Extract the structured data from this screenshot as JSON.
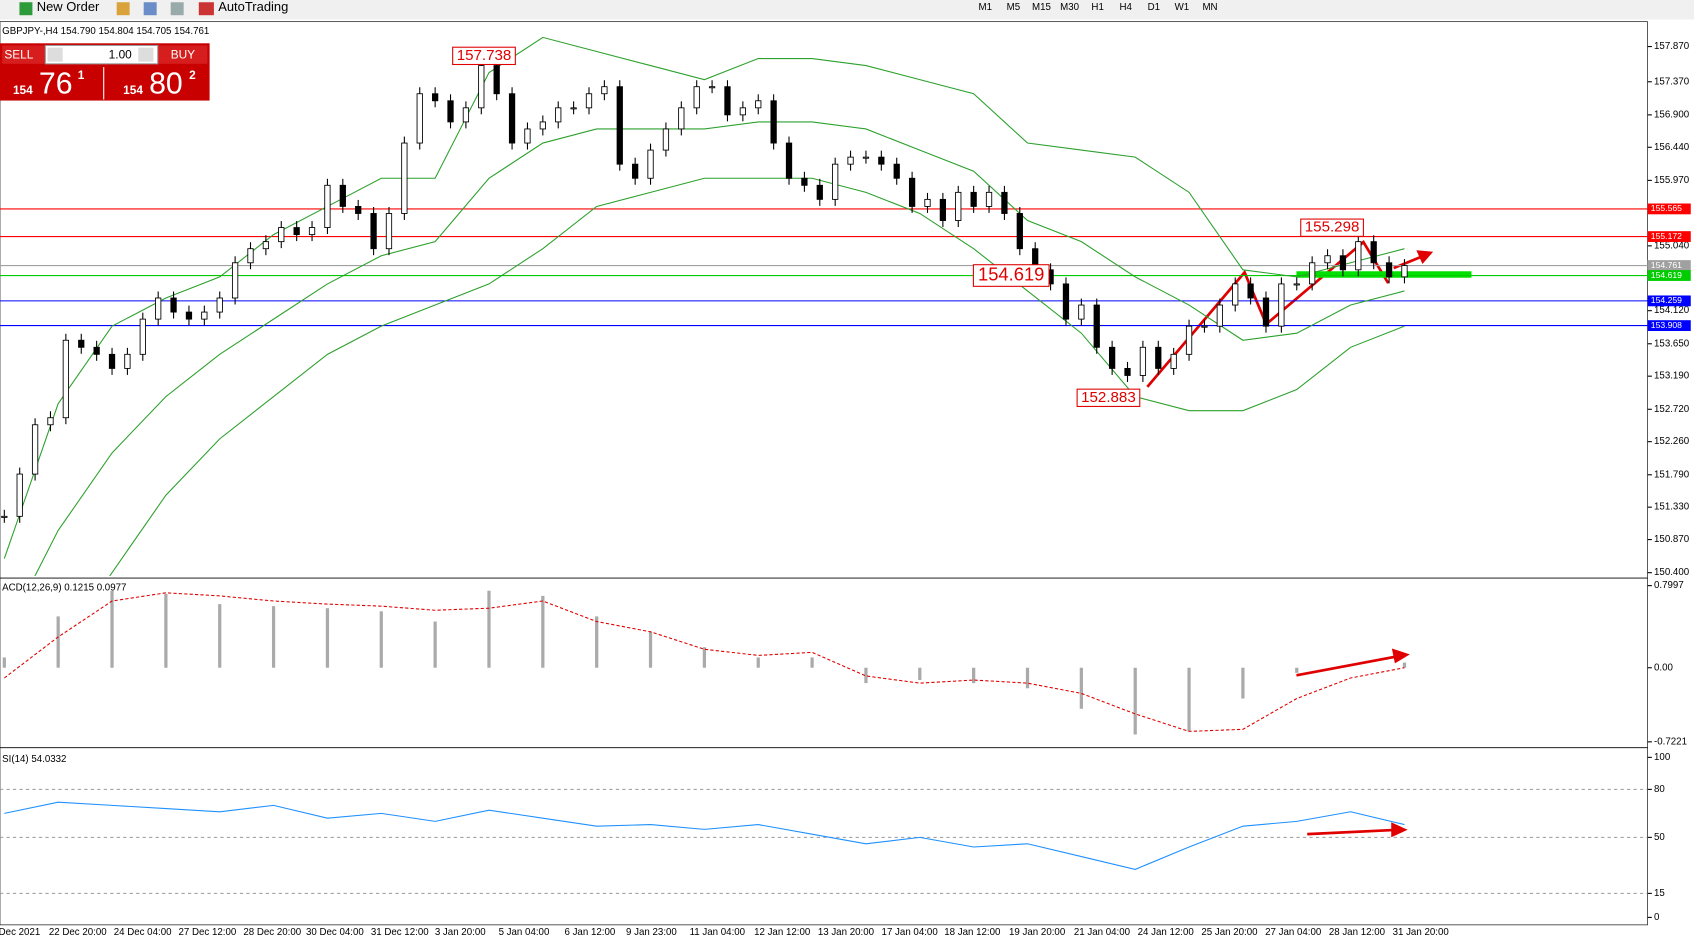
{
  "toolbar": {
    "new_order": "New Order",
    "auto_trading": "AutoTrading",
    "timeframes": [
      "M1",
      "M5",
      "M15",
      "M30",
      "H1",
      "H4",
      "D1",
      "W1",
      "MN"
    ]
  },
  "header": "GBPJPY-,H4  154.790 154.804 154.705 154.761",
  "trade_panel": {
    "sell": "SELL",
    "lots": "1.00",
    "buy": "BUY",
    "sell_big": "154",
    "sell_pips": "76",
    "sell_frac": "1",
    "buy_big": "154",
    "buy_pips": "80",
    "buy_frac": "2"
  },
  "price_chart": {
    "ylim": [
      150.354,
      158.223
    ],
    "yticks": [
      {
        "value": 157.87,
        "label": "157.870"
      },
      {
        "value": 157.37,
        "label": "157.370"
      },
      {
        "value": 156.9,
        "label": "156.900"
      },
      {
        "value": 156.44,
        "label": "156.440"
      },
      {
        "value": 155.97,
        "label": "155.970"
      },
      {
        "value": 155.04,
        "label": "155.040"
      },
      {
        "value": 154.12,
        "label": "154.120"
      },
      {
        "value": 153.65,
        "label": "153.650"
      },
      {
        "value": 153.19,
        "label": "153.190"
      },
      {
        "value": 152.72,
        "label": "152.720"
      },
      {
        "value": 152.26,
        "label": "152.260"
      },
      {
        "value": 151.79,
        "label": "151.790"
      },
      {
        "value": 151.33,
        "label": "151.330"
      },
      {
        "value": 150.87,
        "label": "150.870"
      },
      {
        "value": 150.4,
        "label": "150.400"
      }
    ],
    "levels": [
      {
        "value": 155.565,
        "color": "#ff0000"
      },
      {
        "value": 155.172,
        "color": "#ff0000"
      },
      {
        "value": 154.761,
        "color": "#a0a0a0"
      },
      {
        "value": 154.619,
        "color": "#00cc00"
      },
      {
        "value": 154.259,
        "color": "#0000ff"
      },
      {
        "value": 153.908,
        "color": "#0000ff"
      }
    ],
    "annotations": [
      157.738,
      155.298,
      154.619,
      152.883
    ],
    "closes": [
      151.2,
      151.8,
      152.5,
      152.6,
      153.7,
      153.6,
      153.5,
      153.3,
      153.5,
      154.0,
      154.3,
      154.1,
      154.0,
      154.1,
      154.3,
      154.8,
      155.0,
      155.1,
      155.3,
      155.2,
      155.3,
      155.9,
      155.6,
      155.5,
      155.0,
      155.5,
      156.5,
      157.2,
      157.1,
      156.8,
      157.0,
      157.6,
      157.2,
      156.5,
      156.7,
      156.8,
      157.0,
      157.0,
      157.2,
      157.3,
      156.2,
      156.0,
      156.4,
      156.7,
      157.0,
      157.3,
      157.3,
      156.9,
      157.0,
      157.1,
      156.5,
      156.0,
      155.9,
      155.7,
      156.2,
      156.3,
      156.3,
      156.2,
      156.0,
      155.6,
      155.7,
      155.4,
      155.8,
      155.6,
      155.8,
      155.5,
      155.0,
      154.7,
      154.5,
      154.0,
      154.2,
      153.6,
      153.3,
      153.2,
      153.6,
      153.3,
      153.5,
      153.9,
      153.9,
      154.2,
      154.5,
      154.3,
      153.9,
      154.5,
      154.5,
      154.8,
      154.9,
      154.7,
      155.1,
      154.8,
      154.6,
      154.76
    ],
    "bands": {
      "upper": [
        150.6,
        152.8,
        153.9,
        154.3,
        154.6,
        155.2,
        155.6,
        156.0,
        156.0,
        157.5,
        158.0,
        157.8,
        157.6,
        157.4,
        157.7,
        157.7,
        157.6,
        157.4,
        157.2,
        156.5,
        156.4,
        156.3,
        155.8,
        154.7,
        154.6,
        154.8,
        155.0
      ],
      "middle": [
        149.5,
        151.0,
        152.1,
        152.9,
        153.5,
        154.0,
        154.5,
        154.9,
        155.1,
        156.0,
        156.5,
        156.7,
        156.7,
        156.7,
        156.8,
        156.8,
        156.7,
        156.4,
        156.1,
        155.4,
        155.1,
        154.6,
        154.2,
        153.7,
        153.8,
        154.2,
        154.4
      ],
      "lower": [
        148.5,
        149.3,
        150.4,
        151.5,
        152.3,
        152.9,
        153.5,
        153.9,
        154.2,
        154.5,
        155.0,
        155.6,
        155.8,
        156.0,
        156.0,
        156.0,
        155.8,
        155.5,
        155.0,
        154.4,
        153.8,
        152.9,
        152.7,
        152.7,
        153.0,
        153.6,
        153.9
      ]
    }
  },
  "macd": {
    "label": "ACD(12,26,9) 0.1215 0.0977",
    "ylim": [
      -0.758,
      0.863
    ],
    "yticks": [
      0.7997,
      {
        "value": 0,
        "label": "0.00"
      },
      -0.7221
    ],
    "histogram": [
      0.1,
      0.5,
      0.75,
      0.72,
      0.62,
      0.6,
      0.58,
      0.55,
      0.45,
      0.75,
      0.7,
      0.5,
      0.35,
      0.2,
      0.1,
      0.1,
      -0.15,
      -0.12,
      -0.15,
      -0.2,
      -0.4,
      -0.65,
      -0.62,
      -0.3,
      -0.05,
      0.0,
      0.05
    ],
    "signal": [
      -0.1,
      0.3,
      0.65,
      0.73,
      0.7,
      0.65,
      0.62,
      0.6,
      0.56,
      0.58,
      0.65,
      0.45,
      0.35,
      0.18,
      0.12,
      0.15,
      -0.08,
      -0.15,
      -0.12,
      -0.15,
      -0.25,
      -0.45,
      -0.62,
      -0.6,
      -0.3,
      -0.1,
      0.0
    ]
  },
  "rsi": {
    "label": "SI(14) 54.0332",
    "ylim": [
      -4,
      104.7
    ],
    "yticks": [
      100,
      80,
      50,
      15,
      0
    ],
    "levels": [
      80,
      50,
      15
    ],
    "values": [
      65,
      72,
      70,
      68,
      66,
      70,
      62,
      65,
      60,
      67,
      62,
      57,
      58,
      55,
      58,
      52,
      46,
      50,
      44,
      46,
      38,
      30,
      44,
      57,
      60,
      66,
      58
    ]
  },
  "dates": [
    "Dec 2021",
    "22 Dec 20:00",
    "24 Dec 04:00",
    "27 Dec 12:00",
    "28 Dec 20:00",
    "30 Dec 04:00",
    "31 Dec 12:00",
    "3 Jan 20:00",
    "5 Jan 04:00",
    "6 Jan 12:00",
    "9 Jan 23:00",
    "11 Jan 04:00",
    "12 Jan 12:00",
    "13 Jan 20:00",
    "17 Jan 04:00",
    "18 Jan 12:00",
    "19 Jan 20:00",
    "21 Jan 04:00",
    "24 Jan 12:00",
    "25 Jan 20:00",
    "27 Jan 04:00",
    "28 Jan 12:00",
    "31 Jan 20:00"
  ]
}
